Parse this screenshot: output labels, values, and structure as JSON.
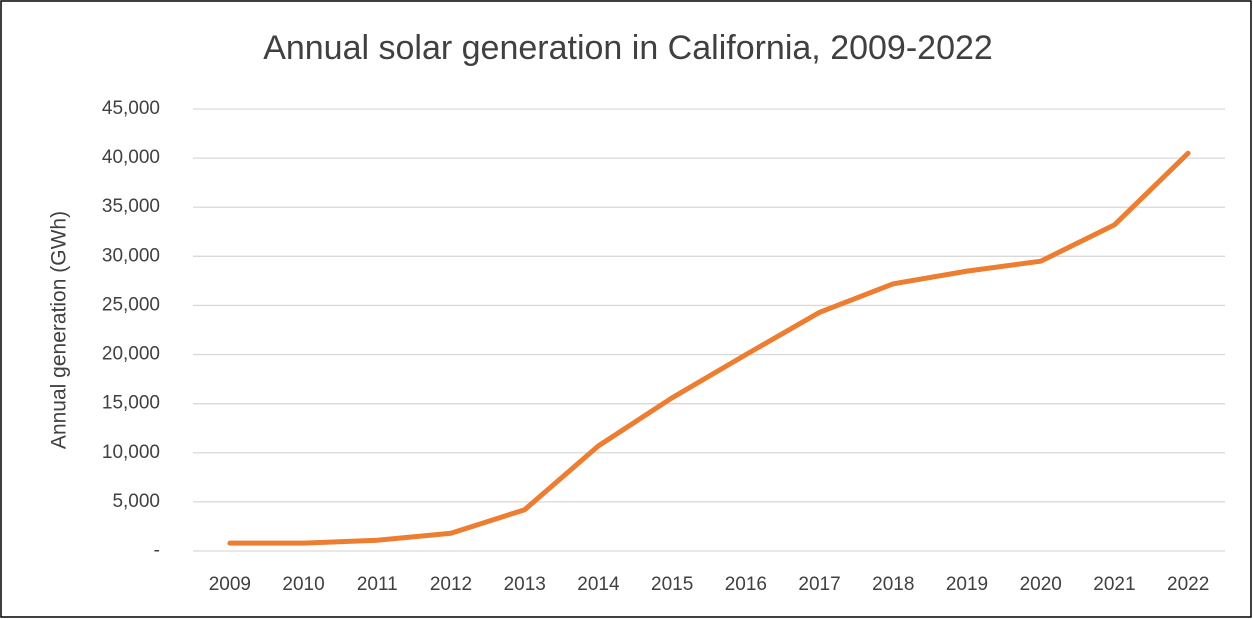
{
  "chart_data": {
    "type": "line",
    "title": "Annual solar generation in California, 2009-2022",
    "y_axis_label": "Annual generation (GWh)",
    "categories": [
      "2009",
      "2010",
      "2011",
      "2012",
      "2013",
      "2014",
      "2015",
      "2016",
      "2017",
      "2018",
      "2019",
      "2020",
      "2021",
      "2022"
    ],
    "series": [
      {
        "name": "Annual generation (GWh)",
        "color": "#ed7d31",
        "values": [
          800,
          800,
          1100,
          1800,
          4200,
          10700,
          15600,
          20000,
          24300,
          27200,
          28500,
          29500,
          33200,
          40500
        ]
      }
    ],
    "ylim": [
      0,
      45000
    ],
    "yticks": [
      {
        "value": 0,
        "label": "-"
      },
      {
        "value": 5000,
        "label": "5,000"
      },
      {
        "value": 10000,
        "label": "10,000"
      },
      {
        "value": 15000,
        "label": "15,000"
      },
      {
        "value": 20000,
        "label": "20,000"
      },
      {
        "value": 25000,
        "label": "25,000"
      },
      {
        "value": 30000,
        "label": "30,000"
      },
      {
        "value": 35000,
        "label": "35,000"
      },
      {
        "value": 40000,
        "label": "40,000"
      },
      {
        "value": 45000,
        "label": "45,000"
      }
    ],
    "grid": true
  }
}
